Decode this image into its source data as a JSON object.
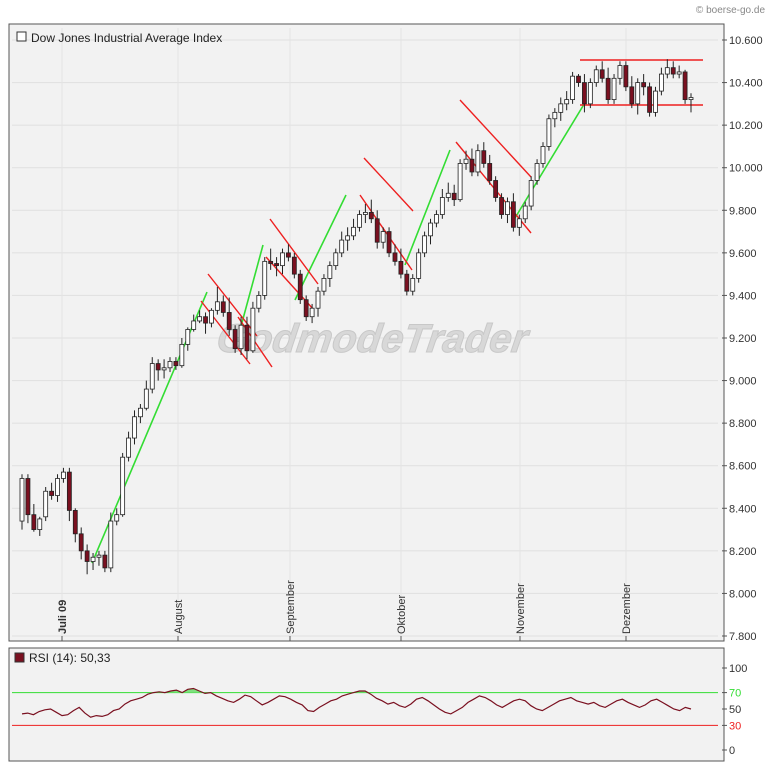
{
  "watermark": {
    "text": "© boerse-go.de",
    "logo": "GodmodeTrader"
  },
  "colors": {
    "background": "#f2f2f2",
    "up_candle": "#ffffff",
    "down_candle": "#7a1020",
    "support_line": "#33dd33",
    "channel_line": "#ee2020",
    "rsi_line": "#7a1020",
    "rsi_upper": "#33dd33",
    "rsi_lower": "#ee2020"
  },
  "chart_data": [
    {
      "type": "candlestick",
      "title": "Dow Jones Industrial Average Index",
      "ylim": [
        7800,
        10600
      ],
      "y_ticks": [
        "10.600",
        "10.400",
        "10.200",
        "10.000",
        "9.800",
        "9.600",
        "9.400",
        "9.200",
        "9.000",
        "8.800",
        "8.600",
        "8.400",
        "8.200",
        "8.000",
        "7.800"
      ],
      "y_tick_values": [
        10600,
        10400,
        10200,
        10000,
        9800,
        9600,
        9400,
        9200,
        9000,
        8800,
        8600,
        8400,
        8200,
        8000,
        7800
      ],
      "x_labels": [
        "Juli 09",
        "August",
        "September",
        "Oktober",
        "November",
        "Dezember"
      ],
      "ohlc": [
        [
          8340,
          8560,
          8300,
          8540
        ],
        [
          8540,
          8560,
          8330,
          8370
        ],
        [
          8370,
          8420,
          8290,
          8300
        ],
        [
          8300,
          8360,
          8270,
          8350
        ],
        [
          8360,
          8500,
          8340,
          8480
        ],
        [
          8480,
          8520,
          8440,
          8460
        ],
        [
          8460,
          8560,
          8430,
          8540
        ],
        [
          8540,
          8590,
          8520,
          8570
        ],
        [
          8570,
          8590,
          8340,
          8390
        ],
        [
          8390,
          8400,
          8240,
          8280
        ],
        [
          8280,
          8310,
          8160,
          8200
        ],
        [
          8200,
          8230,
          8090,
          8150
        ],
        [
          8150,
          8190,
          8110,
          8170
        ],
        [
          8170,
          8200,
          8130,
          8180
        ],
        [
          8180,
          8200,
          8100,
          8120
        ],
        [
          8120,
          8380,
          8100,
          8340
        ],
        [
          8340,
          8400,
          8320,
          8370
        ],
        [
          8370,
          8660,
          8360,
          8640
        ],
        [
          8640,
          8760,
          8620,
          8730
        ],
        [
          8730,
          8860,
          8700,
          8830
        ],
        [
          8830,
          8890,
          8800,
          8870
        ],
        [
          8870,
          9000,
          8860,
          8960
        ],
        [
          8960,
          9110,
          8940,
          9080
        ],
        [
          9080,
          9100,
          9000,
          9050
        ],
        [
          9050,
          9100,
          9010,
          9060
        ],
        [
          9060,
          9110,
          9040,
          9090
        ],
        [
          9090,
          9110,
          9050,
          9070
        ],
        [
          9070,
          9200,
          9060,
          9170
        ],
        [
          9170,
          9250,
          9140,
          9240
        ],
        [
          9240,
          9310,
          9230,
          9280
        ],
        [
          9280,
          9330,
          9270,
          9300
        ],
        [
          9300,
          9320,
          9220,
          9270
        ],
        [
          9270,
          9340,
          9250,
          9330
        ],
        [
          9330,
          9440,
          9310,
          9370
        ],
        [
          9370,
          9400,
          9300,
          9320
        ],
        [
          9320,
          9390,
          9210,
          9240
        ],
        [
          9240,
          9260,
          9130,
          9150
        ],
        [
          9150,
          9300,
          9120,
          9260
        ],
        [
          9260,
          9300,
          9100,
          9140
        ],
        [
          9140,
          9370,
          9130,
          9340
        ],
        [
          9340,
          9420,
          9320,
          9400
        ],
        [
          9400,
          9580,
          9380,
          9560
        ],
        [
          9560,
          9620,
          9520,
          9550
        ],
        [
          9550,
          9580,
          9490,
          9540
        ],
        [
          9540,
          9620,
          9500,
          9600
        ],
        [
          9600,
          9640,
          9560,
          9580
        ],
        [
          9580,
          9600,
          9480,
          9500
        ],
        [
          9500,
          9520,
          9360,
          9380
        ],
        [
          9380,
          9400,
          9280,
          9300
        ],
        [
          9300,
          9360,
          9270,
          9340
        ],
        [
          9340,
          9440,
          9300,
          9420
        ],
        [
          9420,
          9500,
          9400,
          9480
        ],
        [
          9480,
          9560,
          9440,
          9540
        ],
        [
          9540,
          9620,
          9520,
          9600
        ],
        [
          9600,
          9700,
          9580,
          9660
        ],
        [
          9660,
          9720,
          9610,
          9680
        ],
        [
          9680,
          9760,
          9660,
          9720
        ],
        [
          9720,
          9800,
          9700,
          9780
        ],
        [
          9780,
          9830,
          9740,
          9790
        ],
        [
          9790,
          9850,
          9740,
          9760
        ],
        [
          9760,
          9800,
          9620,
          9650
        ],
        [
          9650,
          9720,
          9620,
          9700
        ],
        [
          9700,
          9720,
          9580,
          9600
        ],
        [
          9600,
          9640,
          9540,
          9560
        ],
        [
          9560,
          9620,
          9480,
          9500
        ],
        [
          9500,
          9520,
          9400,
          9420
        ],
        [
          9420,
          9500,
          9400,
          9480
        ],
        [
          9480,
          9620,
          9460,
          9600
        ],
        [
          9600,
          9700,
          9580,
          9680
        ],
        [
          9680,
          9760,
          9640,
          9740
        ],
        [
          9740,
          9800,
          9720,
          9780
        ],
        [
          9780,
          9900,
          9760,
          9860
        ],
        [
          9860,
          9930,
          9840,
          9880
        ],
        [
          9880,
          9920,
          9820,
          9850
        ],
        [
          9850,
          10040,
          9840,
          10020
        ],
        [
          10020,
          10080,
          9990,
          10040
        ],
        [
          10040,
          10090,
          9960,
          9980
        ],
        [
          9980,
          10110,
          9960,
          10080
        ],
        [
          10080,
          10120,
          10000,
          10020
        ],
        [
          10020,
          10060,
          9920,
          9940
        ],
        [
          9940,
          9960,
          9840,
          9860
        ],
        [
          9860,
          9880,
          9760,
          9780
        ],
        [
          9780,
          9860,
          9740,
          9840
        ],
        [
          9840,
          9880,
          9700,
          9720
        ],
        [
          9720,
          9780,
          9680,
          9760
        ],
        [
          9760,
          9840,
          9740,
          9820
        ],
        [
          9820,
          9960,
          9800,
          9940
        ],
        [
          9940,
          10040,
          9920,
          10020
        ],
        [
          10020,
          10120,
          10000,
          10100
        ],
        [
          10100,
          10250,
          10080,
          10230
        ],
        [
          10230,
          10280,
          10190,
          10260
        ],
        [
          10260,
          10330,
          10220,
          10300
        ],
        [
          10300,
          10360,
          10270,
          10320
        ],
        [
          10320,
          10450,
          10300,
          10430
        ],
        [
          10430,
          10440,
          10380,
          10400
        ],
        [
          10400,
          10440,
          10260,
          10300
        ],
        [
          10300,
          10420,
          10280,
          10400
        ],
        [
          10400,
          10480,
          10380,
          10460
        ],
        [
          10460,
          10500,
          10400,
          10420
        ],
        [
          10420,
          10470,
          10300,
          10320
        ],
        [
          10320,
          10440,
          10300,
          10420
        ],
        [
          10420,
          10500,
          10390,
          10480
        ],
        [
          10480,
          10500,
          10360,
          10380
        ],
        [
          10380,
          10430,
          10280,
          10300
        ],
        [
          10300,
          10420,
          10250,
          10400
        ],
        [
          10400,
          10440,
          10340,
          10380
        ],
        [
          10380,
          10400,
          10240,
          10260
        ],
        [
          10260,
          10380,
          10240,
          10360
        ],
        [
          10360,
          10470,
          10340,
          10440
        ],
        [
          10440,
          10510,
          10420,
          10470
        ],
        [
          10470,
          10500,
          10420,
          10440
        ],
        [
          10440,
          10480,
          10420,
          10450
        ],
        [
          10450,
          10460,
          10300,
          10320
        ],
        [
          10320,
          10350,
          10260,
          10330
        ]
      ],
      "channels": [
        [
          [
            201,
            301
          ],
          [
            250,
            364
          ]
        ],
        [
          [
            208,
            274
          ],
          [
            257,
            336
          ]
        ],
        [
          [
            238,
            317
          ],
          [
            272,
            367
          ]
        ],
        [
          [
            266,
            257
          ],
          [
            314,
            310
          ]
        ],
        [
          [
            270,
            219
          ],
          [
            318,
            284
          ]
        ],
        [
          [
            364,
            158
          ],
          [
            413,
            211
          ]
        ],
        [
          [
            360,
            195
          ],
          [
            412,
            270
          ]
        ],
        [
          [
            460,
            100
          ],
          [
            531,
            177
          ]
        ],
        [
          [
            456,
            142
          ],
          [
            531,
            233
          ]
        ],
        [
          [
            580,
            60
          ],
          [
            703,
            60
          ]
        ],
        [
          [
            580,
            105
          ],
          [
            703,
            105
          ]
        ]
      ],
      "trendlines": [
        [
          [
            92,
            563
          ],
          [
            207,
            292
          ]
        ],
        [
          [
            240,
            330
          ],
          [
            263,
            245
          ]
        ],
        [
          [
            295,
            300
          ],
          [
            346,
            195
          ]
        ],
        [
          [
            405,
            265
          ],
          [
            450,
            150
          ]
        ],
        [
          [
            515,
            218
          ],
          [
            586,
            101
          ]
        ]
      ]
    },
    {
      "type": "line",
      "title": "RSI (14): 50,33",
      "ylim": [
        0,
        100
      ],
      "y_ticks": [
        "100",
        "70",
        "50",
        "30",
        "0"
      ],
      "y_tick_values": [
        100,
        70,
        50,
        30,
        0
      ],
      "thresholds": [
        70,
        30
      ],
      "values": [
        44,
        45,
        43,
        47,
        49,
        50,
        46,
        42,
        43,
        48,
        52,
        45,
        40,
        42,
        41,
        43,
        48,
        50,
        56,
        60,
        62,
        64,
        68,
        70,
        71,
        70,
        72,
        73,
        70,
        74,
        75,
        72,
        69,
        70,
        66,
        63,
        60,
        58,
        62,
        67,
        65,
        60,
        55,
        58,
        62,
        66,
        65,
        62,
        58,
        55,
        48,
        47,
        52,
        56,
        60,
        62,
        66,
        68,
        70,
        72,
        72,
        68,
        63,
        60,
        56,
        58,
        54,
        52,
        56,
        62,
        64,
        60,
        55,
        50,
        46,
        44,
        48,
        52,
        58,
        62,
        66,
        64,
        60,
        55,
        52,
        56,
        60,
        62,
        60,
        54,
        50,
        48,
        52,
        56,
        60,
        62,
        64,
        60,
        58,
        56,
        58,
        54,
        52,
        56,
        60,
        62,
        58,
        55,
        52,
        55,
        60,
        62,
        58,
        54,
        50,
        48,
        52,
        50
      ]
    }
  ]
}
